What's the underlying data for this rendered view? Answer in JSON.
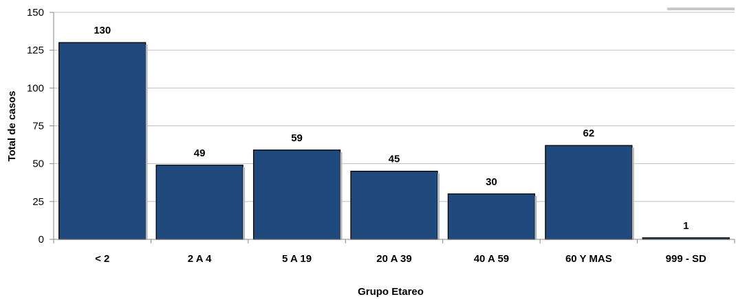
{
  "chart_data": {
    "type": "bar",
    "title": "",
    "xlabel": "Grupo Etareo",
    "ylabel": "Total de casos",
    "categories": [
      "< 2",
      "2 A 4",
      "5 A 19",
      "20 A 39",
      "40 A 59",
      "60 Y MAS",
      "999 - SD"
    ],
    "values": [
      130,
      49,
      59,
      45,
      30,
      62,
      1
    ],
    "data_labels": [
      "130",
      "49",
      "59",
      "45",
      "30",
      "62",
      "1"
    ],
    "ylim": [
      0,
      150
    ],
    "yticks": [
      0,
      25,
      50,
      75,
      100,
      125,
      150
    ],
    "ytick_labels": [
      "0",
      "25",
      "50",
      "75",
      "100",
      "125",
      "150"
    ],
    "grid": true,
    "legend": "none",
    "colors": {
      "bar_fill": "#204a7e",
      "bar_stroke": "#0a0a0a",
      "grid": "#bfbfbf",
      "axis": "#868686"
    }
  }
}
